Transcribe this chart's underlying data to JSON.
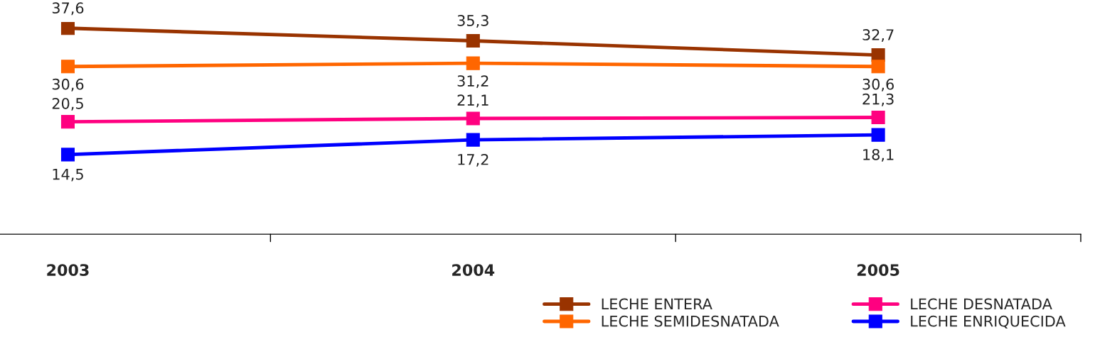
{
  "chart_data": {
    "type": "line",
    "categories": [
      "2003",
      "2004",
      "2005"
    ],
    "tick_labels": "x",
    "marker": "square",
    "line_style": "solid",
    "grid": false,
    "legend": "bottom right",
    "series": [
      {
        "name": "LECHE ENTERA",
        "color": "#993300",
        "values": [
          37.6,
          35.3,
          32.7
        ],
        "value_labels": [
          "37,6",
          "35,3",
          "32,7"
        ]
      },
      {
        "name": "LECHE SEMIDESNATADA",
        "color": "#ff6600",
        "values": [
          30.6,
          31.2,
          30.6
        ],
        "value_labels": [
          "30,6",
          "31,2",
          "30,6"
        ]
      },
      {
        "name": "LECHE DESNATADA",
        "color": "#ff0080",
        "values": [
          20.5,
          21.1,
          21.3
        ],
        "value_labels": [
          "20,5",
          "21,1",
          "21,3"
        ]
      },
      {
        "name": "LECHE ENRIQUECIDA",
        "color": "#0000ff",
        "values": [
          14.5,
          17.2,
          18.1
        ],
        "value_labels": [
          "14,5",
          "17,2",
          "18,1"
        ]
      }
    ]
  }
}
